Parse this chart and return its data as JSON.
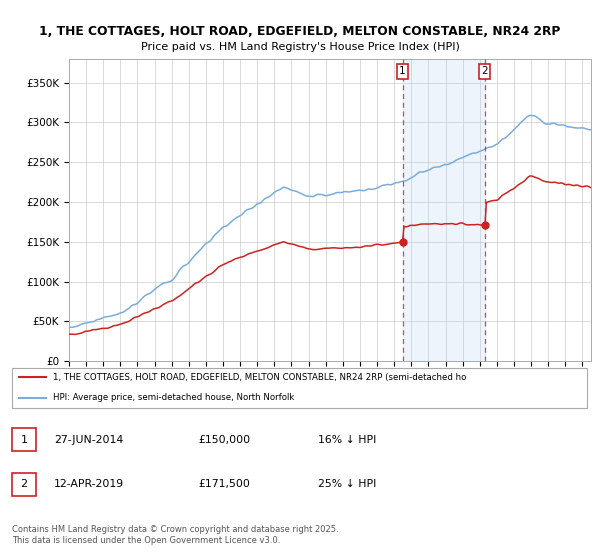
{
  "title_line1": "1, THE COTTAGES, HOLT ROAD, EDGEFIELD, MELTON CONSTABLE, NR24 2RP",
  "title_line2": "Price paid vs. HM Land Registry's House Price Index (HPI)",
  "background_color": "#ffffff",
  "plot_bg_color": "#ffffff",
  "grid_color": "#cccccc",
  "hpi_color": "#7aadda",
  "price_color": "#cc2222",
  "dashed_color": "#cc2222",
  "shade_color": "#ddeeff",
  "legend_label_price": "1, THE COTTAGES, HOLT ROAD, EDGEFIELD, MELTON CONSTABLE, NR24 2RP (semi-detached ho",
  "legend_label_hpi": "HPI: Average price, semi-detached house, North Norfolk",
  "sale1_date": "27-JUN-2014",
  "sale1_price": 150000,
  "sale1_pct": "16% ↓ HPI",
  "sale2_date": "12-APR-2019",
  "sale2_price": 171500,
  "sale2_pct": "25% ↓ HPI",
  "footer": "Contains HM Land Registry data © Crown copyright and database right 2025.\nThis data is licensed under the Open Government Licence v3.0.",
  "yticks": [
    0,
    50000,
    100000,
    150000,
    200000,
    250000,
    300000,
    350000
  ],
  "ytick_labels": [
    "£0",
    "£50K",
    "£100K",
    "£150K",
    "£200K",
    "£250K",
    "£300K",
    "£350K"
  ],
  "ylim": [
    0,
    380000
  ],
  "xlim_start": 1995.0,
  "xlim_end": 2025.5,
  "sale1_x": 2014.49,
  "sale2_x": 2019.28
}
